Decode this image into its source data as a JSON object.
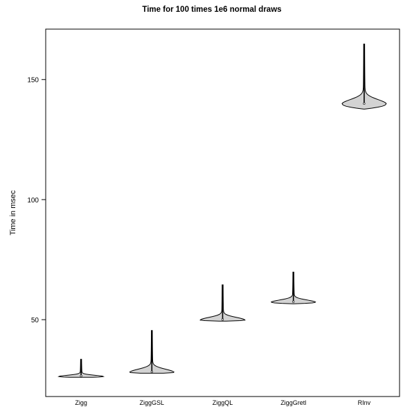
{
  "chart_data": {
    "type": "violin",
    "title": "Time for 100 times 1e6 normal draws",
    "xlabel": "",
    "ylabel": "Time in msec",
    "ylim": [
      18,
      171
    ],
    "yticks": [
      50,
      100,
      150
    ],
    "grid": false,
    "categories": [
      "Zigg",
      "ZiggGSL",
      "ZiggQL",
      "ZiggGretl",
      "RInv"
    ],
    "series": [
      {
        "category": "Zigg",
        "median": 26.3,
        "min": 26.0,
        "max": 33.5
      },
      {
        "category": "ZiggGSL",
        "median": 28.0,
        "min": 27.7,
        "max": 45.5
      },
      {
        "category": "ZiggQL",
        "median": 49.8,
        "min": 49.4,
        "max": 64.5
      },
      {
        "category": "ZiggGretl",
        "median": 57.2,
        "min": 56.6,
        "max": 69.8
      },
      {
        "category": "RInv",
        "median": 139.7,
        "min": 137.7,
        "max": 164.8
      }
    ],
    "colors": {
      "fill": "#d3d3d3",
      "stroke": "#000000",
      "background": "#ffffff"
    }
  }
}
